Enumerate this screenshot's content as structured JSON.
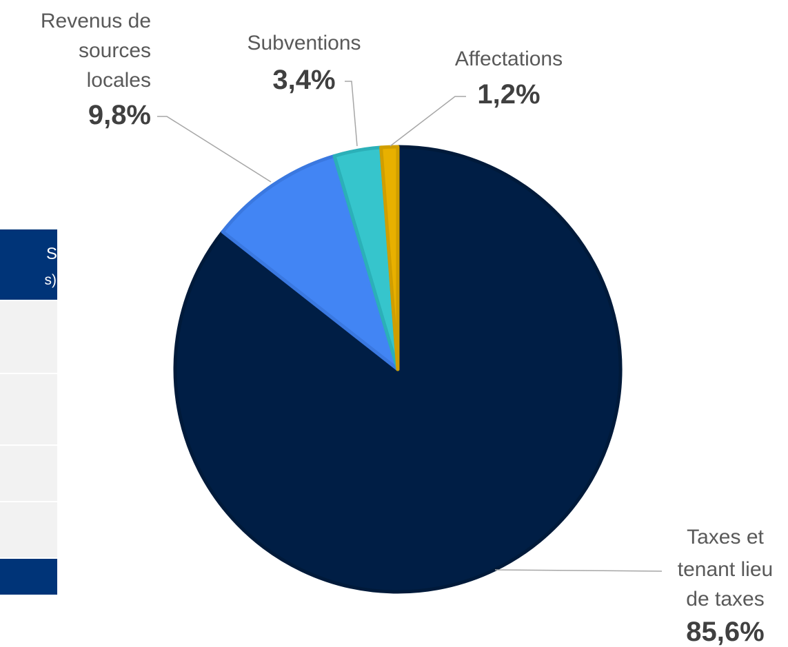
{
  "side_table": {
    "header_line1": "S",
    "header_line2": "s)"
  },
  "chart_data": {
    "type": "pie",
    "title": "",
    "categories": [
      "Taxes et tenant lieu de taxes",
      "Revenus de sources locales",
      "Subventions",
      "Affectations"
    ],
    "values": [
      85.6,
      9.8,
      3.4,
      1.2
    ],
    "unit": "%",
    "value_labels": [
      "85,6%",
      "9,8%",
      "3,4%",
      "1,2%"
    ],
    "label_lines": [
      [
        "Taxes et",
        "tenant lieu",
        "de taxes"
      ],
      [
        "Revenus de",
        "sources",
        "locales"
      ],
      [
        "Subventions"
      ],
      [
        "Affectations"
      ]
    ],
    "colors": [
      "#001e45",
      "#4285f4",
      "#36c5cc",
      "#e8b000"
    ],
    "edge_colors": [
      "#001a3a",
      "#3a78e0",
      "#2bb0b8",
      "#d09e00"
    ],
    "start_angle_deg": 0,
    "direction": "clockwise",
    "legend": "none"
  }
}
